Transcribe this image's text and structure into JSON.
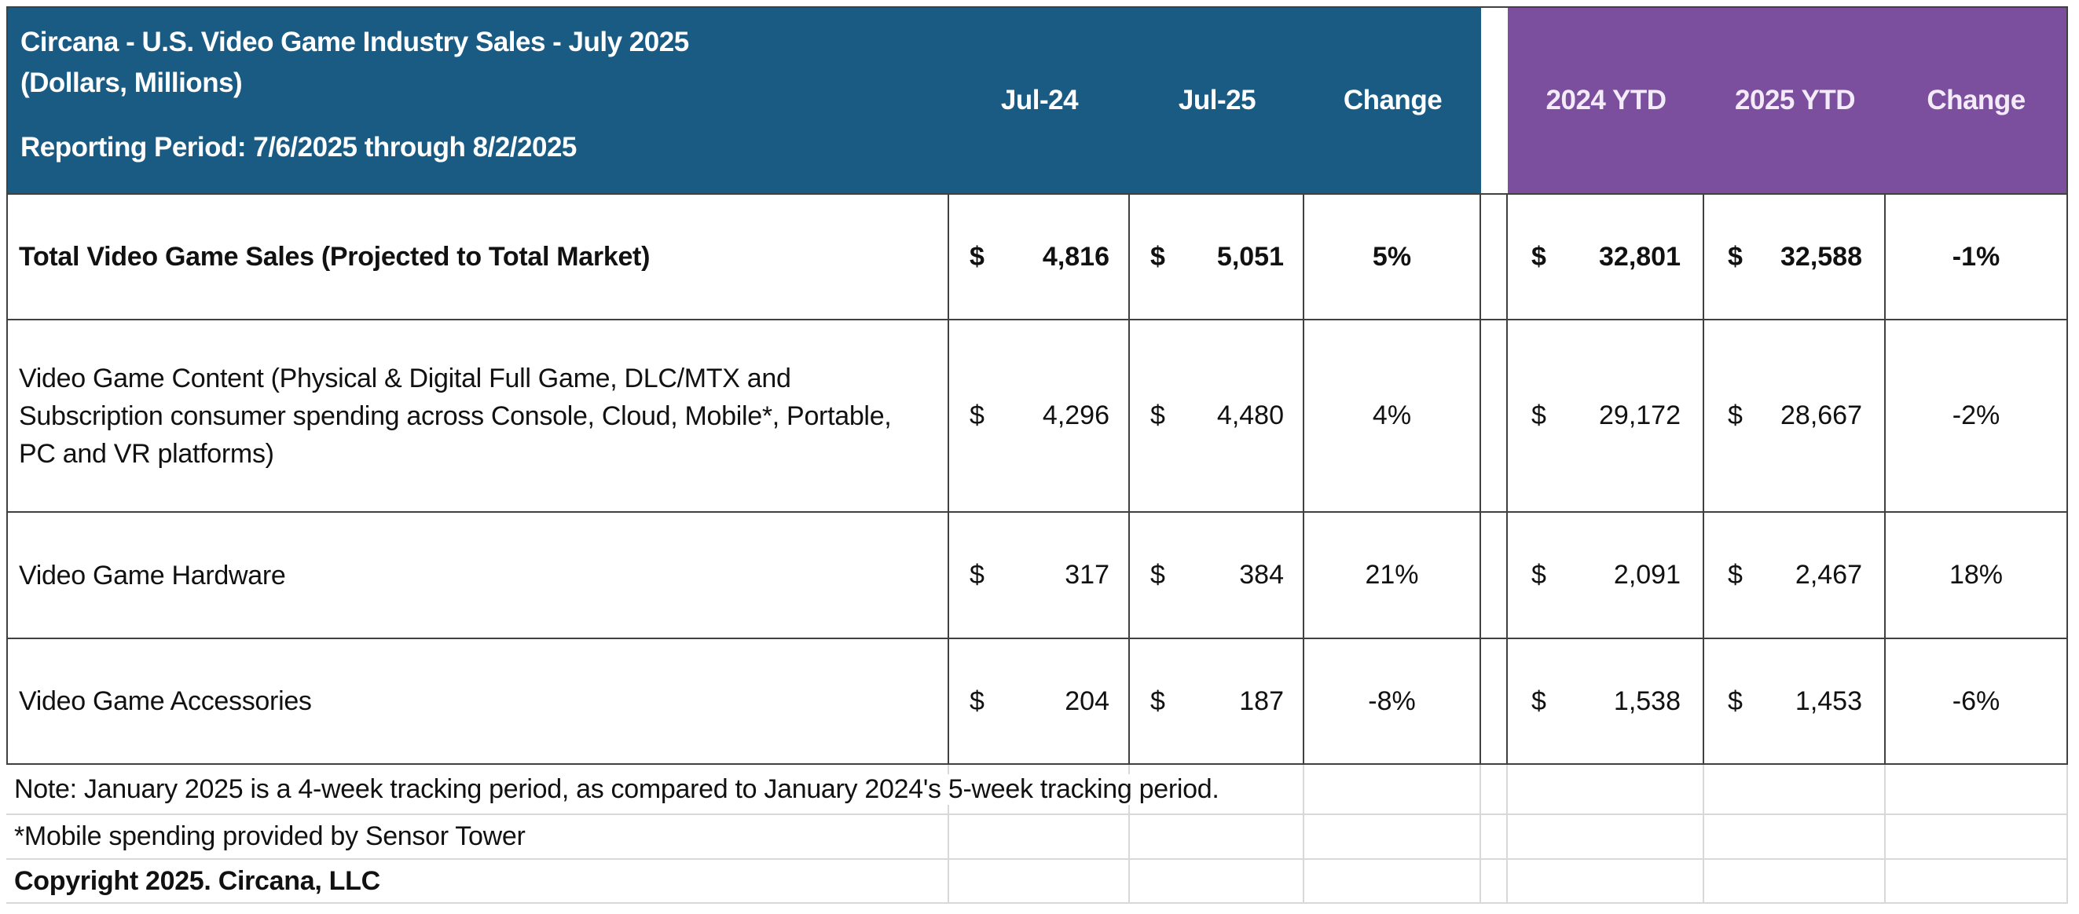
{
  "colors": {
    "header_blue": "#1A5B84",
    "header_purple": "#7B4F9E",
    "grid_dark": "#404040",
    "grid_light": "#D8D8D8",
    "header_text": "#FFFFFF"
  },
  "currency_symbol": "$",
  "header": {
    "title_line1": "Circana - U.S. Video Game Industry Sales - July 2025",
    "title_line2": "(Dollars, Millions)",
    "reporting_period": "Reporting Period: 7/6/2025 through 8/2/2025",
    "col_jul24": "Jul-24",
    "col_jul25": "Jul-25",
    "col_change": "Change",
    "col_ytd24": "2024 YTD",
    "col_ytd25": "2025 YTD",
    "col_ytd_change": "Change"
  },
  "rows": [
    {
      "label": "Total Video Game Sales (Projected to Total Market)",
      "jul24": "4,816",
      "jul25": "5,051",
      "change": "5%",
      "ytd24": "32,801",
      "ytd25": "32,588",
      "ytd_change": "-1%"
    },
    {
      "label": "Video Game Content (Physical & Digital Full Game, DLC/MTX and Subscription consumer spending across Console, Cloud, Mobile*, Portable, PC and VR platforms)",
      "jul24": "4,296",
      "jul25": "4,480",
      "change": "4%",
      "ytd24": "29,172",
      "ytd25": "28,667",
      "ytd_change": "-2%"
    },
    {
      "label": "Video Game Hardware",
      "jul24": "317",
      "jul25": "384",
      "change": "21%",
      "ytd24": "2,091",
      "ytd25": "2,467",
      "ytd_change": "18%"
    },
    {
      "label": "Video Game Accessories",
      "jul24": "204",
      "jul25": "187",
      "change": "-8%",
      "ytd24": "1,538",
      "ytd25": "1,453",
      "ytd_change": "-6%"
    }
  ],
  "footer": {
    "note": "Note: January 2025 is a 4-week tracking period, as compared to January 2024's 5-week tracking period.",
    "mobile_note": "*Mobile spending provided by Sensor Tower",
    "copyright": "Copyright 2025. Circana, LLC"
  },
  "chart_data": {
    "type": "table",
    "title": "Circana - U.S. Video Game Industry Sales - July 2025",
    "subtitle": "(Dollars, Millions)",
    "reporting_period": "7/6/2025 through 8/2/2025",
    "units": "US dollars, millions",
    "columns": [
      "Category",
      "Jul-24",
      "Jul-25",
      "Change",
      "2024 YTD",
      "2025 YTD",
      "Change"
    ],
    "rows": [
      [
        "Total Video Game Sales (Projected to Total Market)",
        4816,
        5051,
        "5%",
        32801,
        32588,
        "-1%"
      ],
      [
        "Video Game Content (Physical & Digital Full Game, DLC/MTX and Subscription consumer spending across Console, Cloud, Mobile*, Portable, PC and VR platforms)",
        4296,
        4480,
        "4%",
        29172,
        28667,
        "-2%"
      ],
      [
        "Video Game Hardware",
        317,
        384,
        "21%",
        2091,
        2467,
        "18%"
      ],
      [
        "Video Game Accessories",
        204,
        187,
        "-8%",
        1538,
        1453,
        "-6%"
      ]
    ],
    "notes": [
      "Note: January 2025 is a 4-week tracking period, as compared to January 2024's 5-week tracking period.",
      "*Mobile spending provided by Sensor Tower",
      "Copyright 2025. Circana, LLC"
    ]
  }
}
